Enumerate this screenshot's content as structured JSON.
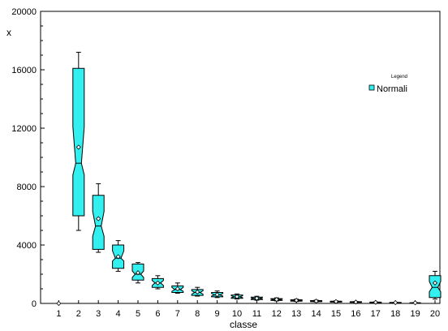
{
  "chart_data": {
    "type": "boxplot",
    "xlabel": "classe",
    "ylabel": "x",
    "ylim": [
      0,
      20000
    ],
    "yticks": [
      0,
      4000,
      8000,
      12000,
      16000,
      20000
    ],
    "grid": false,
    "legend": {
      "title": "Legend",
      "placement": "right",
      "entries": [
        {
          "name": "Normali",
          "color": "#33f0f0"
        }
      ]
    },
    "categories": [
      "1",
      "2",
      "3",
      "4",
      "5",
      "6",
      "7",
      "8",
      "9",
      "10",
      "11",
      "12",
      "13",
      "14",
      "15",
      "16",
      "17",
      "18",
      "19",
      "20"
    ],
    "series": [
      {
        "name": "Normali",
        "color": "#33f0f0",
        "boxes": [
          {
            "min": 0,
            "q1": 0,
            "median": 0,
            "q3": 0,
            "max": 0,
            "mean": 0
          },
          {
            "min": 5000,
            "q1": 6000,
            "median": 9600,
            "q3": 16100,
            "max": 17200,
            "mean": 10700,
            "notch": [
              8800,
              12100
            ]
          },
          {
            "min": 3500,
            "q1": 3700,
            "median": 5300,
            "q3": 7400,
            "max": 8200,
            "mean": 5800,
            "notch": [
              4600,
              6300
            ]
          },
          {
            "min": 2200,
            "q1": 2400,
            "median": 3100,
            "q3": 4000,
            "max": 4300,
            "mean": 3200,
            "notch": [
              2900,
              3600
            ]
          },
          {
            "min": 1400,
            "q1": 1600,
            "median": 2000,
            "q3": 2700,
            "max": 2800,
            "mean": 2100
          },
          {
            "min": 1000,
            "q1": 1100,
            "median": 1400,
            "q3": 1700,
            "max": 1900,
            "mean": 1400
          },
          {
            "min": 700,
            "q1": 750,
            "median": 950,
            "q3": 1200,
            "max": 1400,
            "mean": 1000
          },
          {
            "min": 500,
            "q1": 550,
            "median": 750,
            "q3": 950,
            "max": 1100,
            "mean": 780
          },
          {
            "min": 400,
            "q1": 450,
            "median": 580,
            "q3": 750,
            "max": 850,
            "mean": 600
          },
          {
            "min": 300,
            "q1": 350,
            "median": 450,
            "q3": 580,
            "max": 650,
            "mean": 460
          },
          {
            "min": 220,
            "q1": 260,
            "median": 340,
            "q3": 430,
            "max": 490,
            "mean": 350
          },
          {
            "min": 170,
            "q1": 200,
            "median": 260,
            "q3": 330,
            "max": 380,
            "mean": 270
          },
          {
            "min": 130,
            "q1": 150,
            "median": 200,
            "q3": 250,
            "max": 290,
            "mean": 210
          },
          {
            "min": 100,
            "q1": 115,
            "median": 155,
            "q3": 195,
            "max": 225,
            "mean": 160
          },
          {
            "min": 75,
            "q1": 90,
            "median": 120,
            "q3": 150,
            "max": 175,
            "mean": 125
          },
          {
            "min": 55,
            "q1": 65,
            "median": 90,
            "q3": 115,
            "max": 135,
            "mean": 95
          },
          {
            "min": 40,
            "q1": 50,
            "median": 70,
            "q3": 90,
            "max": 105,
            "mean": 72
          },
          {
            "min": 30,
            "q1": 38,
            "median": 52,
            "q3": 68,
            "max": 80,
            "mean": 55
          },
          {
            "min": 20,
            "q1": 28,
            "median": 40,
            "q3": 52,
            "max": 62,
            "mean": 42
          },
          {
            "min": 300,
            "q1": 400,
            "median": 1100,
            "q3": 1900,
            "max": 2200,
            "mean": 1400,
            "notch": [
              800,
              1500
            ]
          }
        ]
      }
    ]
  }
}
